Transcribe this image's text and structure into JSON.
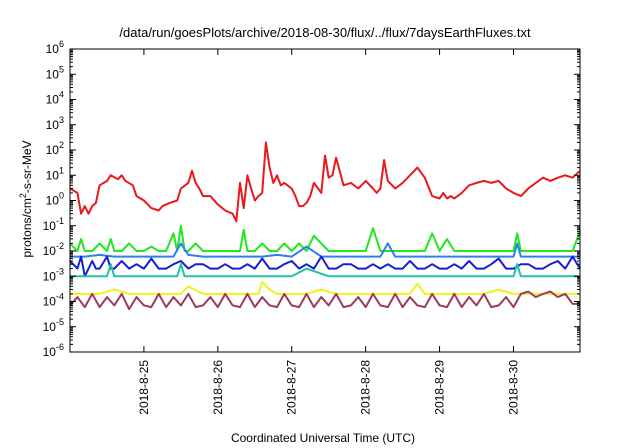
{
  "chart_data": {
    "type": "line",
    "title": "/data/run/goesPlots/archive/2018-08-30/flux/../flux/7daysEarthFluxes.txt",
    "xlabel": "Coordinated Universal Time (UTC)",
    "ylabel": {
      "base": "protons/cm",
      "sup": "2",
      "rest": "-s-sr-MeV"
    },
    "yscale": "log",
    "ylim_exp": [
      -6,
      6
    ],
    "y_ticks": [
      {
        "base": "10",
        "exp": "6"
      },
      {
        "base": "10",
        "exp": "5"
      },
      {
        "base": "10",
        "exp": "4"
      },
      {
        "base": "10",
        "exp": "3"
      },
      {
        "base": "10",
        "exp": "2"
      },
      {
        "base": "10",
        "exp": "1"
      },
      {
        "base": "10",
        "exp": "0"
      },
      {
        "base": "10",
        "exp": "-1"
      },
      {
        "base": "10",
        "exp": "-2"
      },
      {
        "base": "10",
        "exp": "-3"
      },
      {
        "base": "10",
        "exp": "-4"
      },
      {
        "base": "10",
        "exp": "-5"
      },
      {
        "base": "10",
        "exp": "-6"
      }
    ],
    "x_ticks": [
      "2018-8-25",
      "2018-8-26",
      "2018-8-27",
      "2018-8-28",
      "2018-8-29",
      "2018-8-30"
    ],
    "xlim": [
      0,
      6.9
    ],
    "x_tick_positions": [
      1,
      2,
      3,
      4,
      5,
      6
    ],
    "grid": false,
    "legend": "none",
    "series": [
      {
        "color": "#e8191b",
        "x": [
          0.0,
          0.1,
          0.15,
          0.2,
          0.25,
          0.3,
          0.35,
          0.4,
          0.5,
          0.55,
          0.65,
          0.7,
          0.75,
          0.85,
          0.9,
          1.0,
          1.1,
          1.2,
          1.25,
          1.35,
          1.45,
          1.5,
          1.6,
          1.65,
          1.7,
          1.75,
          1.8,
          1.9,
          2.0,
          2.1,
          2.2,
          2.25,
          2.3,
          2.35,
          2.4,
          2.45,
          2.5,
          2.55,
          2.6,
          2.65,
          2.7,
          2.75,
          2.8,
          2.85,
          2.9,
          3.0,
          3.05,
          3.1,
          3.15,
          3.2,
          3.25,
          3.3,
          3.4,
          3.45,
          3.5,
          3.55,
          3.6,
          3.7,
          3.8,
          3.9,
          4.0,
          4.1,
          4.15,
          4.2,
          4.25,
          4.3,
          4.4,
          4.5,
          4.6,
          4.7,
          4.8,
          4.9,
          5.0,
          5.05,
          5.1,
          5.15,
          5.2,
          5.3,
          5.4,
          5.5,
          5.6,
          5.7,
          5.8,
          5.9,
          6.0,
          6.1,
          6.2,
          6.3,
          6.4,
          6.5,
          6.6,
          6.7,
          6.8,
          6.9
        ],
        "y": [
          3,
          2,
          0.3,
          0.6,
          0.3,
          0.6,
          0.8,
          4,
          6,
          10,
          7,
          10,
          6,
          4,
          1.5,
          1,
          0.5,
          0.4,
          0.6,
          0.8,
          1,
          3,
          5,
          15,
          5,
          3,
          1.5,
          1.5,
          0.7,
          0.4,
          0.3,
          0.15,
          5,
          0.5,
          10,
          3,
          1,
          1.5,
          2,
          200,
          20,
          5,
          10,
          4,
          5,
          3,
          1.5,
          0.6,
          0.6,
          0.8,
          1.5,
          5,
          2,
          60,
          8,
          10,
          50,
          4,
          5,
          3,
          6,
          3,
          2,
          3,
          40,
          6,
          3,
          5,
          10,
          20,
          8,
          1.5,
          1.2,
          2,
          1.2,
          1.5,
          1.2,
          2,
          4,
          5,
          6,
          5,
          6,
          3,
          2,
          1.5,
          3,
          5,
          8,
          6,
          8,
          10,
          8,
          15
        ]
      },
      {
        "color": "#22e61e",
        "x": [
          0.0,
          0.1,
          0.15,
          0.2,
          0.3,
          0.4,
          0.5,
          0.55,
          0.6,
          0.7,
          0.8,
          0.9,
          1.0,
          1.1,
          1.2,
          1.3,
          1.4,
          1.45,
          1.5,
          1.55,
          1.6,
          1.7,
          1.8,
          1.9,
          2.0,
          2.1,
          2.2,
          2.3,
          2.35,
          2.4,
          2.5,
          2.6,
          2.7,
          2.8,
          2.9,
          3.0,
          3.1,
          3.2,
          3.3,
          3.4,
          3.5,
          3.6,
          3.7,
          3.8,
          3.9,
          4.0,
          4.1,
          4.2,
          4.3,
          4.4,
          4.5,
          4.6,
          4.7,
          4.8,
          4.9,
          5.0,
          5.1,
          5.2,
          5.3,
          5.4,
          5.5,
          5.6,
          5.7,
          5.8,
          5.9,
          6.0,
          6.05,
          6.1,
          6.2,
          6.3,
          6.4,
          6.5,
          6.6,
          6.7,
          6.8,
          6.9
        ],
        "y": [
          0.02,
          0.01,
          0.03,
          0.01,
          0.01,
          0.02,
          0.01,
          0.03,
          0.01,
          0.01,
          0.02,
          0.01,
          0.01,
          0.015,
          0.01,
          0.01,
          0.05,
          0.01,
          0.1,
          0.01,
          0.01,
          0.02,
          0.01,
          0.01,
          0.01,
          0.01,
          0.01,
          0.01,
          0.07,
          0.01,
          0.01,
          0.02,
          0.01,
          0.01,
          0.02,
          0.01,
          0.02,
          0.01,
          0.04,
          0.02,
          0.01,
          0.01,
          0.01,
          0.01,
          0.01,
          0.01,
          0.08,
          0.01,
          0.01,
          0.01,
          0.01,
          0.01,
          0.01,
          0.01,
          0.05,
          0.01,
          0.03,
          0.01,
          0.01,
          0.01,
          0.01,
          0.01,
          0.01,
          0.01,
          0.01,
          0.01,
          0.05,
          0.01,
          0.01,
          0.01,
          0.01,
          0.01,
          0.01,
          0.01,
          0.01,
          0.06
        ]
      },
      {
        "color": "#2b82e8",
        "x": [
          0.0,
          0.2,
          0.4,
          0.6,
          0.8,
          1.0,
          1.2,
          1.4,
          1.5,
          1.6,
          1.8,
          2.0,
          2.2,
          2.4,
          2.6,
          2.8,
          3.0,
          3.2,
          3.4,
          3.6,
          3.8,
          4.0,
          4.2,
          4.3,
          4.4,
          4.6,
          4.8,
          5.0,
          5.2,
          5.4,
          5.6,
          5.8,
          6.0,
          6.05,
          6.1,
          6.2,
          6.4,
          6.6,
          6.8,
          6.9
        ],
        "y": [
          0.006,
          0.006,
          0.007,
          0.006,
          0.006,
          0.006,
          0.006,
          0.006,
          0.02,
          0.007,
          0.006,
          0.006,
          0.006,
          0.006,
          0.006,
          0.007,
          0.006,
          0.015,
          0.006,
          0.006,
          0.006,
          0.006,
          0.006,
          0.02,
          0.006,
          0.006,
          0.006,
          0.006,
          0.006,
          0.006,
          0.006,
          0.006,
          0.006,
          0.02,
          0.006,
          0.006,
          0.006,
          0.006,
          0.006,
          0.006
        ]
      },
      {
        "color": "#1520d0",
        "x": [
          0.0,
          0.1,
          0.15,
          0.2,
          0.3,
          0.35,
          0.4,
          0.5,
          0.55,
          0.6,
          0.7,
          0.8,
          0.9,
          1.0,
          1.1,
          1.2,
          1.3,
          1.4,
          1.5,
          1.6,
          1.7,
          1.8,
          1.9,
          2.0,
          2.1,
          2.2,
          2.3,
          2.4,
          2.5,
          2.6,
          2.7,
          2.8,
          2.9,
          3.0,
          3.1,
          3.2,
          3.3,
          3.4,
          3.5,
          3.6,
          3.7,
          3.8,
          3.9,
          4.0,
          4.1,
          4.2,
          4.3,
          4.4,
          4.5,
          4.6,
          4.7,
          4.8,
          4.9,
          5.0,
          5.1,
          5.2,
          5.3,
          5.4,
          5.5,
          5.6,
          5.7,
          5.8,
          5.9,
          6.0,
          6.1,
          6.2,
          6.3,
          6.4,
          6.5,
          6.6,
          6.7,
          6.8,
          6.9
        ],
        "y": [
          0.004,
          0.002,
          0.006,
          0.001,
          0.004,
          0.002,
          0.002,
          0.006,
          0.002,
          0.002,
          0.004,
          0.002,
          0.003,
          0.002,
          0.005,
          0.002,
          0.002,
          0.003,
          0.004,
          0.002,
          0.003,
          0.003,
          0.002,
          0.002,
          0.003,
          0.002,
          0.002,
          0.003,
          0.002,
          0.005,
          0.002,
          0.002,
          0.003,
          0.004,
          0.002,
          0.003,
          0.002,
          0.006,
          0.002,
          0.002,
          0.003,
          0.003,
          0.002,
          0.002,
          0.003,
          0.002,
          0.003,
          0.002,
          0.002,
          0.004,
          0.002,
          0.002,
          0.003,
          0.002,
          0.002,
          0.003,
          0.002,
          0.004,
          0.002,
          0.002,
          0.003,
          0.005,
          0.002,
          0.002,
          0.003,
          0.003,
          0.002,
          0.002,
          0.003,
          0.004,
          0.002,
          0.006,
          0.002
        ]
      },
      {
        "color": "#20c3a3",
        "x": [
          0.0,
          0.3,
          0.5,
          0.55,
          0.6,
          0.9,
          1.2,
          1.45,
          1.5,
          1.55,
          1.8,
          2.1,
          2.4,
          2.7,
          3.0,
          3.2,
          3.5,
          3.8,
          4.1,
          4.4,
          4.7,
          5.0,
          5.3,
          5.6,
          5.9,
          6.0,
          6.05,
          6.1,
          6.4,
          6.7,
          6.9
        ],
        "y": [
          0.001,
          0.001,
          0.001,
          0.003,
          0.001,
          0.001,
          0.001,
          0.001,
          0.003,
          0.001,
          0.001,
          0.001,
          0.001,
          0.001,
          0.001,
          0.002,
          0.001,
          0.001,
          0.001,
          0.001,
          0.001,
          0.001,
          0.001,
          0.001,
          0.001,
          0.001,
          0.003,
          0.001,
          0.001,
          0.001,
          0.001
        ]
      },
      {
        "color": "#f2f21a",
        "x": [
          0.0,
          0.2,
          0.4,
          0.6,
          0.8,
          1.0,
          1.2,
          1.5,
          1.6,
          1.8,
          2.0,
          2.2,
          2.4,
          2.55,
          2.6,
          2.7,
          2.8,
          3.0,
          3.2,
          3.4,
          3.6,
          3.8,
          4.0,
          4.2,
          4.4,
          4.6,
          4.7,
          4.8,
          5.0,
          5.2,
          5.4,
          5.6,
          5.8,
          6.0,
          6.2,
          6.4,
          6.6,
          6.8,
          6.9
        ],
        "y": [
          0.0002,
          0.0002,
          0.0002,
          0.0003,
          0.0002,
          0.0002,
          0.0002,
          0.0002,
          0.0004,
          0.0002,
          0.0002,
          0.0002,
          0.0002,
          0.0002,
          0.0006,
          0.0003,
          0.0002,
          0.0002,
          0.0002,
          0.0003,
          0.0002,
          0.0002,
          0.0002,
          0.0002,
          0.0002,
          0.0002,
          0.0005,
          0.0002,
          0.0002,
          0.0002,
          0.0002,
          0.0002,
          0.0003,
          0.0002,
          0.0002,
          0.0002,
          0.0002,
          0.0002,
          0.0002
        ]
      },
      {
        "color": "#9a3c64",
        "x": [
          0.0,
          0.1,
          0.2,
          0.3,
          0.4,
          0.5,
          0.6,
          0.7,
          0.8,
          0.9,
          1.0,
          1.1,
          1.2,
          1.3,
          1.4,
          1.5,
          1.6,
          1.7,
          1.8,
          1.9,
          2.0,
          2.1,
          2.2,
          2.3,
          2.4,
          2.5,
          2.6,
          2.7,
          2.8,
          2.9,
          3.0,
          3.1,
          3.2,
          3.3,
          3.4,
          3.5,
          3.6,
          3.7,
          3.8,
          3.9,
          4.0,
          4.1,
          4.2,
          4.3,
          4.4,
          4.5,
          4.6,
          4.7,
          4.8,
          4.9,
          5.0,
          5.1,
          5.2,
          5.3,
          5.4,
          5.5,
          5.6,
          5.7,
          5.8,
          5.9,
          6.0,
          6.1,
          6.2,
          6.3,
          6.4,
          6.5,
          6.6,
          6.7,
          6.8,
          6.9
        ],
        "y": [
          7e-05,
          0.00015,
          6e-05,
          0.0002,
          6e-05,
          0.00015,
          7e-05,
          0.0002,
          5e-05,
          0.00015,
          7e-05,
          6e-05,
          0.0002,
          6e-05,
          0.00015,
          7e-05,
          0.0002,
          6e-05,
          7e-05,
          0.00015,
          6e-05,
          0.0002,
          7e-05,
          6e-05,
          0.0002,
          6e-05,
          0.00015,
          7e-05,
          6e-05,
          0.0002,
          7e-05,
          6e-05,
          0.0002,
          6e-05,
          0.00015,
          7e-05,
          0.0002,
          6e-05,
          7e-05,
          0.00015,
          6e-05,
          0.0002,
          7e-05,
          6e-05,
          0.0002,
          6e-05,
          0.00015,
          7e-05,
          6e-05,
          0.0002,
          7e-05,
          6e-05,
          0.0002,
          6e-05,
          0.00015,
          7e-05,
          0.0002,
          6e-05,
          7e-05,
          0.00015,
          6e-05,
          0.0002,
          0.00025,
          0.00015,
          0.0002,
          0.00025,
          0.00015,
          0.0002,
          8e-05,
          8e-05
        ]
      }
    ]
  }
}
